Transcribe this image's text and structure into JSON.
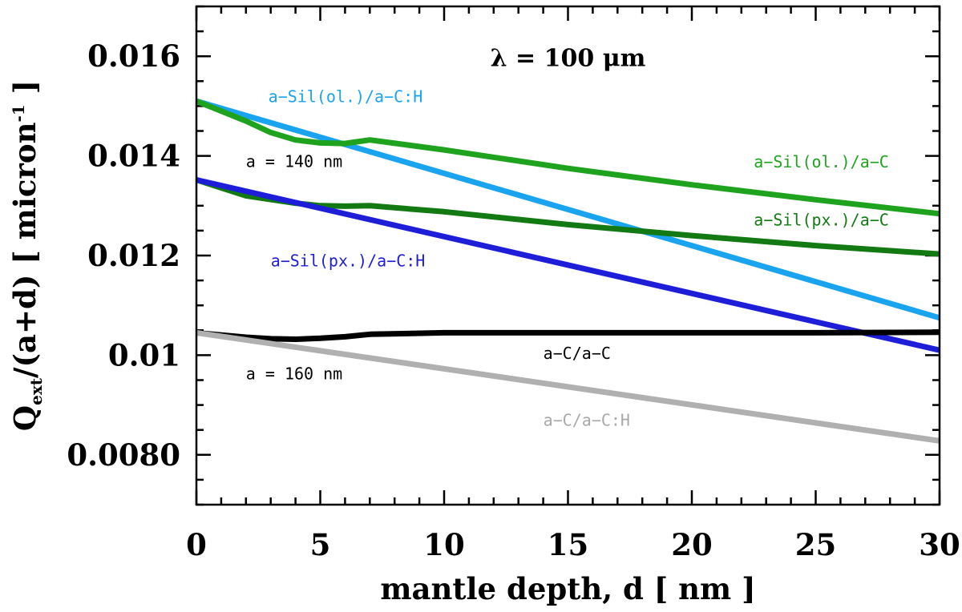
{
  "chart_data": {
    "type": "line",
    "xlabel": "mantle depth, d [ nm ]",
    "ylabel_parts": {
      "q": "Q",
      "sub": "ext",
      "rest": "/(a+d) [ micron",
      "sup": "-1",
      "end": " ]"
    },
    "xlim": [
      0,
      30
    ],
    "ylim": [
      0.007,
      0.017
    ],
    "xticks": [
      0,
      5,
      10,
      15,
      20,
      25,
      30
    ],
    "xtick_labels": [
      "0",
      "5",
      "10",
      "15",
      "20",
      "25",
      "30"
    ],
    "yticks": [
      0.008,
      0.01,
      0.012,
      0.014,
      0.016
    ],
    "ytick_labels": [
      "0.0080",
      "0.01",
      "0.012",
      "0.014",
      "0.016"
    ],
    "grid": false,
    "series": [
      {
        "name": "a−Sil(ol.)/a−C:H",
        "color": "#1aa3ee",
        "x": [
          0,
          30
        ],
        "y": [
          0.0151,
          0.01075
        ]
      },
      {
        "name": "a−Sil(ol.)/a−C",
        "color": "#1fa31f",
        "x": [
          0,
          1,
          2,
          3,
          4,
          5,
          6,
          7,
          10,
          15,
          20,
          25,
          30
        ],
        "y": [
          0.0151,
          0.0149,
          0.0147,
          0.01447,
          0.01432,
          0.01426,
          0.01425,
          0.01432,
          0.01412,
          0.01375,
          0.01342,
          0.01312,
          0.01284
        ]
      },
      {
        "name": "a−Sil(px.)/a−C",
        "color": "#137a13",
        "x": [
          0,
          2,
          4,
          5,
          6,
          7,
          10,
          15,
          20,
          25,
          30
        ],
        "y": [
          0.01352,
          0.0132,
          0.01305,
          0.013,
          0.01299,
          0.013,
          0.01288,
          0.01262,
          0.0124,
          0.0122,
          0.01203
        ]
      },
      {
        "name": "a−Sil(px.)/a−C:H",
        "color": "#1e1ed8",
        "x": [
          0,
          30
        ],
        "y": [
          0.01352,
          0.0101
        ]
      },
      {
        "name": "a−C/a−C",
        "color": "#000000",
        "x": [
          0,
          2,
          3,
          4,
          5,
          6,
          7,
          10,
          15,
          20,
          25,
          30
        ],
        "y": [
          0.01045,
          0.01036,
          0.01033,
          0.01032,
          0.01034,
          0.01037,
          0.01042,
          0.01045,
          0.01045,
          0.01045,
          0.01045,
          0.01046
        ]
      },
      {
        "name": "a−C/a−C:H",
        "color": "#b0b0b0",
        "x": [
          0,
          30
        ],
        "y": [
          0.01045,
          0.00828
        ]
      }
    ],
    "annotations": [
      {
        "text": "λ = 100 μm",
        "x": 15,
        "y": 0.0158,
        "color": "#000000",
        "kind": "title"
      },
      {
        "text": "a−Sil(ol.)/a−C:H",
        "x": 2.9,
        "y": 0.01508,
        "color": "#1aa3ee"
      },
      {
        "text": "a = 140 nm",
        "x": 2.0,
        "y": 0.01378,
        "color": "#000000"
      },
      {
        "text": "a−Sil(ol.)/a−C",
        "x": 22.5,
        "y": 0.01377,
        "color": "#1fa31f"
      },
      {
        "text": "a−Sil(px.)/a−C",
        "x": 22.5,
        "y": 0.0126,
        "color": "#137a13"
      },
      {
        "text": "a−Sil(px.)/a−C:H",
        "x": 3.0,
        "y": 0.01178,
        "color": "#1e1ed8"
      },
      {
        "text": "a−C/a−C",
        "x": 14.0,
        "y": 0.00993,
        "color": "#000000"
      },
      {
        "text": "a = 160 nm",
        "x": 2.0,
        "y": 0.00952,
        "color": "#000000"
      },
      {
        "text": "a−C/a−C:H",
        "x": 14.0,
        "y": 0.00858,
        "color": "#a8a8a8"
      }
    ]
  }
}
